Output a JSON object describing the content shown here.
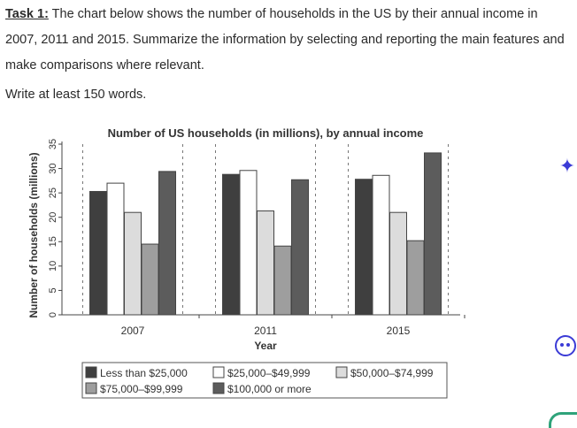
{
  "task": {
    "lead": "Task 1:",
    "text": " The chart below shows the number of households in the US by their annual income in 2007, 2011 and 2015. Summarize the information by selecting and reporting the main features and make comparisons where relevant.",
    "words": "Write at least 150 words."
  },
  "icons": {
    "sparkle": "sparkle-icon",
    "assistant": "assistant-face-icon",
    "brand": "brand-logo-icon"
  },
  "chart_data": {
    "type": "bar",
    "title": "Number of US households (in millions), by annual income",
    "xlabel": "Year",
    "ylabel": "Number of households (millions)",
    "ylim": [
      0,
      35
    ],
    "yticks": [
      "0",
      "5",
      "10",
      "15",
      "20",
      "25",
      "30",
      "35"
    ],
    "categories": [
      "2007",
      "2011",
      "2015"
    ],
    "legend_position": "bottom",
    "series": [
      {
        "name": "Less than $25,000",
        "color": "#3f3f3f",
        "values": [
          25.3,
          28.8,
          27.8
        ]
      },
      {
        "name": "$25,000–$49,999",
        "color": "#ffffff",
        "values": [
          27.0,
          29.6,
          28.6
        ]
      },
      {
        "name": "$50,000–$74,999",
        "color": "#dcdcdc",
        "values": [
          21.0,
          21.3,
          21.0
        ]
      },
      {
        "name": "$75,000–$99,999",
        "color": "#9e9e9e",
        "values": [
          14.5,
          14.1,
          15.2
        ]
      },
      {
        "name": "$100,000 or more",
        "color": "#5c5c5c",
        "values": [
          29.4,
          27.7,
          33.2
        ]
      }
    ]
  }
}
